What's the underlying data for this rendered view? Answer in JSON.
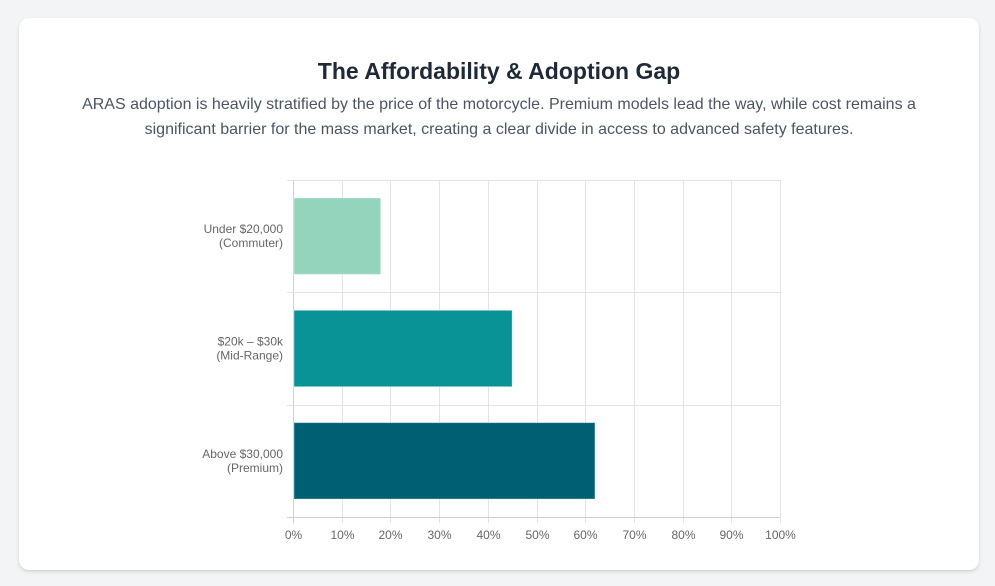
{
  "header": {
    "title": "The Affordability & Adoption Gap",
    "description": "ARAS adoption is heavily stratified by the price of the motorcycle. Premium models lead the way, while cost remains a significant barrier for the mass market, creating a clear divide in access to advanced safety features."
  },
  "chart_data": {
    "type": "bar",
    "orientation": "horizontal",
    "title": "The Affordability & Adoption Gap",
    "categories": [
      [
        "Under $20,000",
        "(Commuter)"
      ],
      [
        "$20k – $30k",
        "(Mid-Range)"
      ],
      [
        "Above $30,000",
        "(Premium)"
      ]
    ],
    "values": [
      18,
      45,
      62
    ],
    "colors": [
      "#94d3bc",
      "#0a9396",
      "#005f73"
    ],
    "xlabel": "",
    "ylabel": "",
    "xlim": [
      0,
      100
    ],
    "xticks": [
      "0%",
      "10%",
      "20%",
      "30%",
      "40%",
      "50%",
      "60%",
      "70%",
      "80%",
      "90%",
      "100%"
    ],
    "tick_suffix": "%",
    "grid": true,
    "legend": "none"
  }
}
